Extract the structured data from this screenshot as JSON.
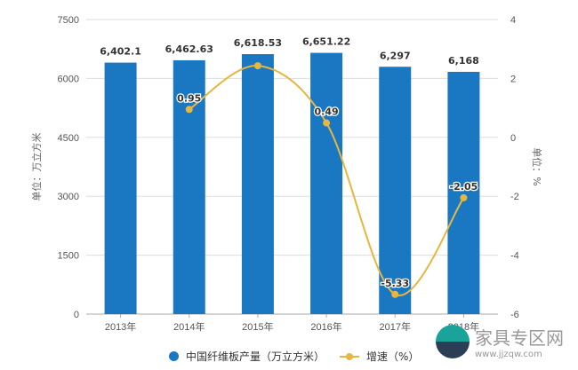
{
  "chart_data": {
    "type": "bar+line",
    "categories": [
      "2013年",
      "2014年",
      "2015年",
      "2016年",
      "2017年",
      "2018年"
    ],
    "series": [
      {
        "name": "中国纤维板产量（万立方米）",
        "type": "bar",
        "axis": "left",
        "color": "#1a78c2",
        "values": [
          6402.1,
          6462.63,
          6618.53,
          6651.22,
          6297,
          6168
        ],
        "labels": [
          "6,402.1",
          "6,462.63",
          "6,618.53",
          "6,651.22",
          "6,297",
          "6,168"
        ]
      },
      {
        "name": "增速（%）",
        "type": "line",
        "axis": "right",
        "color": "#e8b63e",
        "values": [
          null,
          0.95,
          2.43,
          0.49,
          -5.33,
          -2.05
        ],
        "labels": [
          "",
          "0.95",
          "",
          "0.49",
          "-5.33",
          "-2.05"
        ]
      }
    ],
    "ylabel": "单位：万立方米",
    "y2label": "单位：%",
    "ylim": [
      0,
      7500
    ],
    "yticks": [
      0,
      1500,
      3000,
      4500,
      6000,
      7500
    ],
    "y2lim": [
      -6,
      4
    ],
    "y2ticks": [
      -6,
      -4,
      -2,
      0,
      2,
      4
    ],
    "grid": true,
    "legend": "bottom"
  },
  "watermark": {
    "name": "家具专区网",
    "url": "www.jjzqw.com"
  }
}
